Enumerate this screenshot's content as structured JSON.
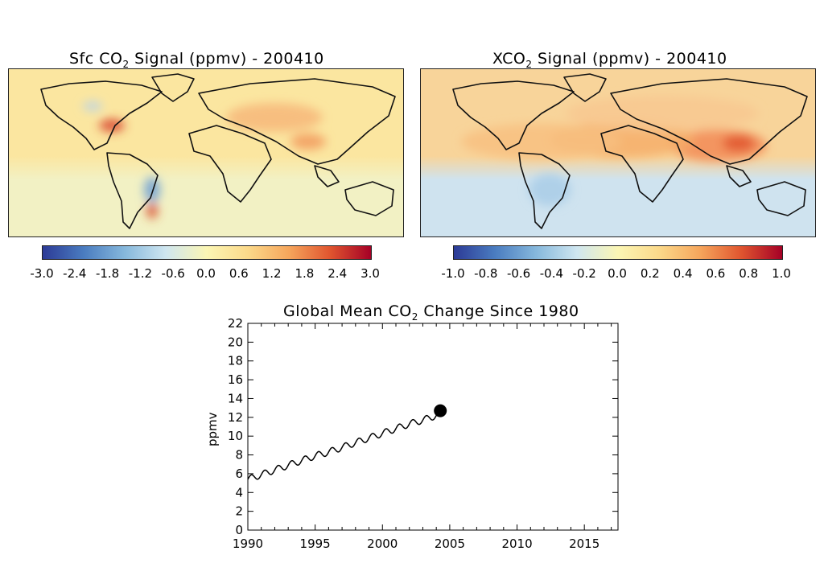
{
  "map_left": {
    "title_prefix": "Sfc CO",
    "title_sub": "2",
    "title_suffix": " Signal (ppmv) - 200410",
    "colorbar_ticks": [
      "-3.0",
      "-2.4",
      "-1.8",
      "-1.2",
      "-0.6",
      "0.0",
      "0.6",
      "1.2",
      "1.8",
      "2.4",
      "3.0"
    ]
  },
  "map_right": {
    "title_prefix": "XCO",
    "title_sub": "2",
    "title_suffix": " Signal (ppmv) - 200410",
    "colorbar_ticks": [
      "-1.0",
      "-0.8",
      "-0.6",
      "-0.4",
      "-0.2",
      "0.0",
      "0.2",
      "0.4",
      "0.6",
      "0.8",
      "1.0"
    ]
  },
  "colors": {
    "colorbar_stops": [
      "#2c3a96",
      "#4a7cc0",
      "#86b8dc",
      "#cfe6f0",
      "#fbf6b4",
      "#fbd98a",
      "#f6a65c",
      "#e0552f",
      "#a50026"
    ],
    "ocean_left": "#fbe6a0",
    "ocean_right": "#f8d49a",
    "south_left": "#f2f1c4",
    "south_right": "#cfe3ef",
    "coast": "#111111"
  },
  "chart_data": {
    "type": "line",
    "title_prefix": "Global Mean CO",
    "title_sub": "2",
    "title_suffix": " Change Since 1980",
    "xlabel": "",
    "ylabel": "ppmv",
    "xlim": [
      1990,
      2017.5
    ],
    "ylim": [
      0,
      22
    ],
    "xticks": [
      1990,
      1995,
      2000,
      2005,
      2010,
      2015
    ],
    "yticks": [
      0,
      2,
      4,
      6,
      8,
      10,
      12,
      14,
      16,
      18,
      20,
      22
    ],
    "series": [
      {
        "x": [
          1990.0,
          1991.0,
          1992.0,
          1993.0,
          1994.0,
          1995.0,
          1996.0,
          1997.0,
          1998.0,
          1999.0,
          2000.0,
          2001.0,
          2002.0,
          2003.0,
          2004.0,
          2004.3
        ],
        "y": [
          5.4,
          5.9,
          6.4,
          6.9,
          7.4,
          7.9,
          8.3,
          8.8,
          9.3,
          9.8,
          10.3,
          10.8,
          11.3,
          11.7,
          12.2,
          12.5
        ],
        "seasonal_amplitude": 0.35
      }
    ],
    "current_marker": {
      "x": 2004.3,
      "y": 12.7
    }
  }
}
